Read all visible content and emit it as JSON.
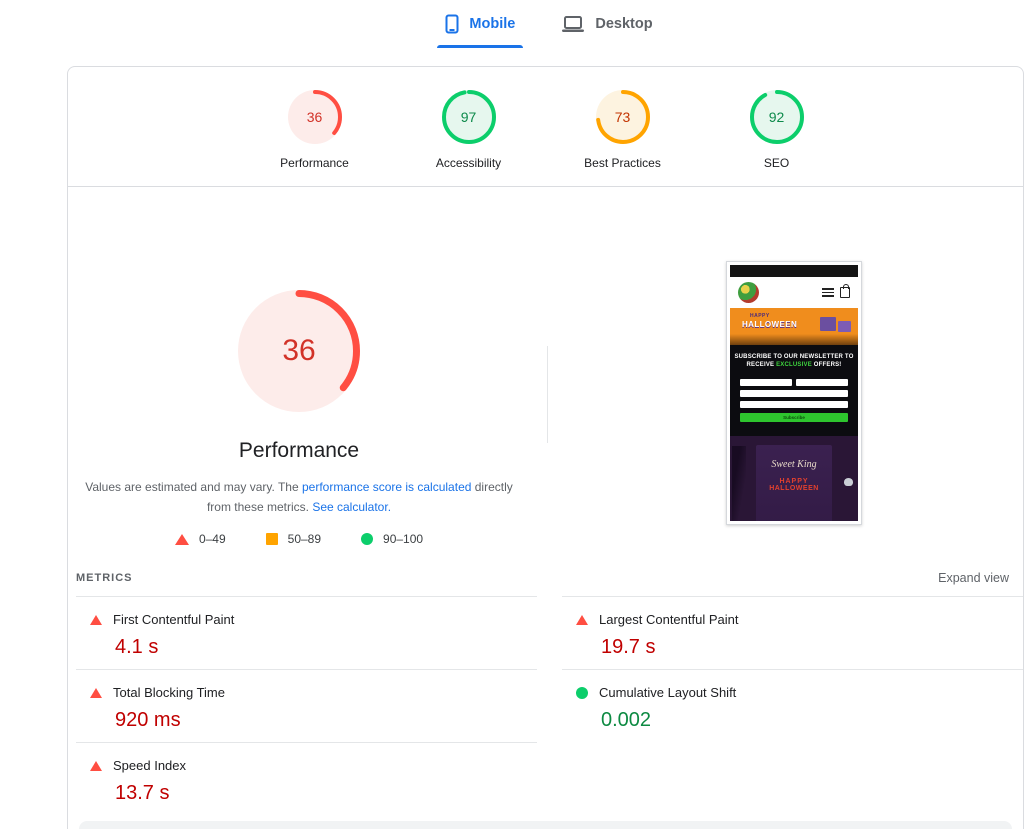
{
  "tabs": {
    "mobile": "Mobile",
    "desktop": "Desktop"
  },
  "colors": {
    "accent_blue": "#1a73e8",
    "ranges": {
      "fail": {
        "arc": "#ff4e42",
        "fill": "#fdecea",
        "text": "#d23228"
      },
      "average": {
        "arc": "#ffa400",
        "fill": "#fdf3e0",
        "text": "#c33300"
      },
      "pass": {
        "arc": "#0cce6b",
        "fill": "#e6f7ee",
        "text": "#0d8a4b"
      }
    },
    "metric_fail_text": "#c00000",
    "metric_pass_text": "#0d8a42"
  },
  "scores": {
    "categories": [
      {
        "label": "Performance",
        "score": 36
      },
      {
        "label": "Accessibility",
        "score": 97
      },
      {
        "label": "Best Practices",
        "score": 73
      },
      {
        "label": "SEO",
        "score": 92
      }
    ],
    "main": {
      "label": "Performance",
      "score": 36
    }
  },
  "disclaimer": {
    "text_start": "Values are estimated and may vary. The ",
    "link_calculated": "performance score is calculated",
    "text_middle": " directly from these metrics. ",
    "link_calculator": "See calculator."
  },
  "legend": {
    "fail_range": "0–49",
    "average_range": "50–89",
    "pass_range": "90–100"
  },
  "metrics": {
    "heading": "METRICS",
    "expand_label": "Expand view",
    "items": [
      {
        "name": "First Contentful Paint",
        "value": "4.1 s",
        "status": "fail"
      },
      {
        "name": "Largest Contentful Paint",
        "value": "19.7 s",
        "status": "fail"
      },
      {
        "name": "Total Blocking Time",
        "value": "920 ms",
        "status": "fail"
      },
      {
        "name": "Cumulative Layout Shift",
        "value": "0.002",
        "status": "pass"
      },
      {
        "name": "Speed Index",
        "value": "13.7 s",
        "status": "fail"
      }
    ]
  },
  "screenshot_preview": {
    "banner_happy": "HAPPY",
    "banner_halloween": "HALLOWEEN",
    "newsletter_line1": "SUBSCRIBE TO OUR NEWSLETTER TO",
    "newsletter_line2_pre": "RECEIVE ",
    "newsletter_line2_highlight": "EXCLUSIVE",
    "newsletter_line2_post": " OFFERS!",
    "subscribe_button": "Subscribe",
    "poster_brand": "Sweet King",
    "poster_line1": "HAPPY",
    "poster_line2": "HALLOWEEN"
  }
}
